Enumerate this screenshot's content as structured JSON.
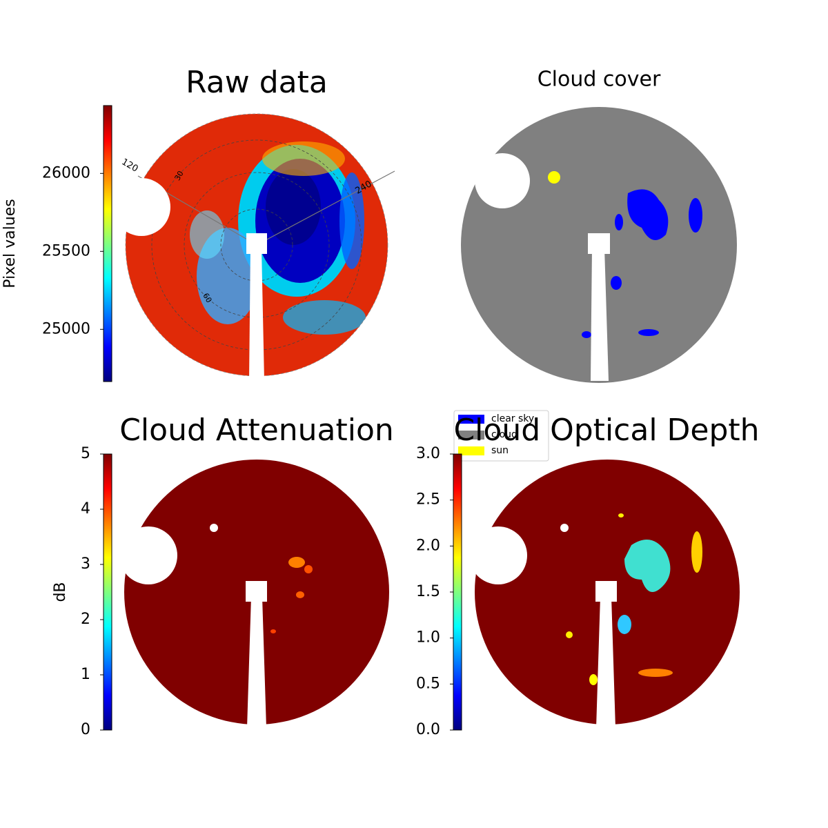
{
  "chart_data": [
    {
      "type": "image",
      "title": "Raw data",
      "colorbar": {
        "label": "Pixel values",
        "colormap": "jet",
        "lim": [
          24665,
          26435
        ],
        "ticks": [
          25000,
          25500,
          26000
        ]
      },
      "polar_labels": [
        "120",
        "240",
        "30",
        "60"
      ]
    },
    {
      "type": "image",
      "title": "Cloud cover",
      "legend": [
        {
          "name": "clear sky",
          "color": "#0000ff"
        },
        {
          "name": "cloud",
          "color": "#808080"
        },
        {
          "name": "sun",
          "color": "#ffff00"
        }
      ]
    },
    {
      "type": "image",
      "title": "Cloud Attenuation",
      "colorbar": {
        "label": "dB",
        "colormap": "jet",
        "lim": [
          0,
          5
        ],
        "ticks": [
          0,
          1,
          2,
          3,
          4,
          5
        ]
      }
    },
    {
      "type": "image",
      "title": "Cloud Optical Depth",
      "colorbar": {
        "colormap": "jet",
        "lim": [
          0,
          3
        ],
        "ticks": [
          {
            "value": 0,
            "label": "0.0"
          },
          {
            "value": 0.5,
            "label": "0.5"
          },
          {
            "value": 1,
            "label": "1.0"
          },
          {
            "value": 1.5,
            "label": "1.5"
          },
          {
            "value": 2,
            "label": "2.0"
          },
          {
            "value": 2.5,
            "label": "2.5"
          },
          {
            "value": 3,
            "label": "3.0"
          }
        ]
      }
    }
  ]
}
